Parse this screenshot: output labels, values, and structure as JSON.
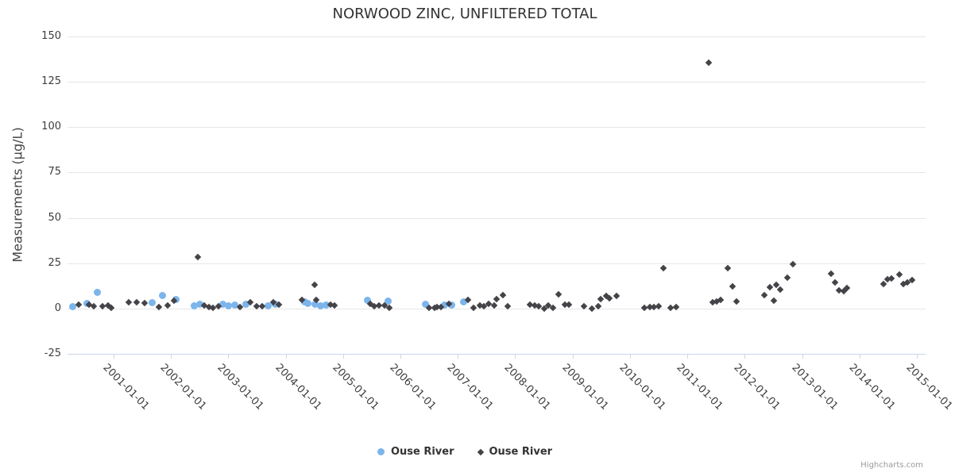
{
  "chart": {
    "title": "NORWOOD ZINC, UNFILTERED TOTAL",
    "credits": "Highcharts.com",
    "y_axis": {
      "title": "Measurements (µg/L)"
    },
    "legend": [
      {
        "label": "Ouse River",
        "marker": "circle",
        "color": "#7cb5ec"
      },
      {
        "label": "Ouse River",
        "marker": "diamond",
        "color": "#434348"
      }
    ]
  },
  "chart_data": {
    "type": "scatter",
    "title": "NORWOOD ZINC, UNFILTERED TOTAL",
    "xlabel": "",
    "ylabel": "Measurements (µg/L)",
    "xlim": [
      2000.2,
      2015.15
    ],
    "ylim": [
      -25,
      150
    ],
    "yticks": [
      -25,
      0,
      25,
      50,
      75,
      100,
      125,
      150
    ],
    "grid": "horizontal",
    "legend_position": "bottom-center",
    "xticks": [
      {
        "value": 2001,
        "label": "2001-01-01"
      },
      {
        "value": 2002,
        "label": "2002-01-01"
      },
      {
        "value": 2003,
        "label": "2003-01-01"
      },
      {
        "value": 2004,
        "label": "2004-01-01"
      },
      {
        "value": 2005,
        "label": "2005-01-01"
      },
      {
        "value": 2006,
        "label": "2006-01-01"
      },
      {
        "value": 2007,
        "label": "2007-01-01"
      },
      {
        "value": 2008,
        "label": "2008-01-01"
      },
      {
        "value": 2009,
        "label": "2009-01-01"
      },
      {
        "value": 2010,
        "label": "2010-01-01"
      },
      {
        "value": 2011,
        "label": "2011-01-01"
      },
      {
        "value": 2012,
        "label": "2012-01-01"
      },
      {
        "value": 2013,
        "label": "2013-01-01"
      },
      {
        "value": 2014,
        "label": "2014-01-01"
      },
      {
        "value": 2015,
        "label": "2015-01-01"
      }
    ],
    "series": [
      {
        "name": "Ouse River",
        "marker": "circle",
        "color": "#7cb5ec",
        "points": [
          [
            2000.29,
            0.9
          ],
          [
            2000.54,
            2.6
          ],
          [
            2000.72,
            8.8
          ],
          [
            2001.68,
            3.1
          ],
          [
            2001.86,
            7.0
          ],
          [
            2002.09,
            4.8
          ],
          [
            2002.41,
            1.3
          ],
          [
            2002.51,
            2.2
          ],
          [
            2002.91,
            2.2
          ],
          [
            2003.01,
            1.3
          ],
          [
            2003.12,
            1.8
          ],
          [
            2003.31,
            2.2
          ],
          [
            2003.7,
            1.3
          ],
          [
            2003.82,
            2.2
          ],
          [
            2004.33,
            3.5
          ],
          [
            2004.39,
            2.6
          ],
          [
            2004.51,
            2.2
          ],
          [
            2004.61,
            1.3
          ],
          [
            2004.71,
            1.8
          ],
          [
            2005.43,
            4.4
          ],
          [
            2005.79,
            3.9
          ],
          [
            2006.44,
            2.2
          ],
          [
            2006.77,
            1.8
          ],
          [
            2006.89,
            1.8
          ],
          [
            2007.1,
            3.5
          ]
        ]
      },
      {
        "name": "Ouse River",
        "marker": "diamond",
        "color": "#434348",
        "points": [
          [
            2000.39,
            2.2
          ],
          [
            2000.57,
            2.2
          ],
          [
            2000.65,
            1.3
          ],
          [
            2000.81,
            1.3
          ],
          [
            2000.9,
            1.8
          ],
          [
            2000.96,
            0.4
          ],
          [
            2001.26,
            3.5
          ],
          [
            2001.4,
            3.5
          ],
          [
            2001.54,
            3.1
          ],
          [
            2001.79,
            0.9
          ],
          [
            2001.95,
            1.8
          ],
          [
            2002.05,
            4.4
          ],
          [
            2002.47,
            28.5
          ],
          [
            2002.58,
            1.8
          ],
          [
            2002.66,
            0.9
          ],
          [
            2002.74,
            0.4
          ],
          [
            2002.83,
            1.3
          ],
          [
            2003.2,
            0.9
          ],
          [
            2003.39,
            3.5
          ],
          [
            2003.49,
            1.3
          ],
          [
            2003.59,
            1.3
          ],
          [
            2003.78,
            3.5
          ],
          [
            2003.88,
            2.2
          ],
          [
            2004.29,
            4.8
          ],
          [
            2004.5,
            13.1
          ],
          [
            2004.53,
            4.8
          ],
          [
            2004.78,
            2.2
          ],
          [
            2004.85,
            1.8
          ],
          [
            2005.47,
            2.6
          ],
          [
            2005.55,
            1.3
          ],
          [
            2005.63,
            1.8
          ],
          [
            2005.72,
            1.8
          ],
          [
            2005.81,
            0.4
          ],
          [
            2006.5,
            0.4
          ],
          [
            2006.59,
            0.4
          ],
          [
            2006.64,
            0.9
          ],
          [
            2006.71,
            0.9
          ],
          [
            2006.84,
            2.6
          ],
          [
            2007.18,
            4.8
          ],
          [
            2007.28,
            0.4
          ],
          [
            2007.38,
            1.8
          ],
          [
            2007.45,
            1.3
          ],
          [
            2007.53,
            2.6
          ],
          [
            2007.63,
            1.8
          ],
          [
            2007.68,
            5.3
          ],
          [
            2007.78,
            7.4
          ],
          [
            2007.87,
            1.3
          ],
          [
            2008.26,
            2.2
          ],
          [
            2008.34,
            1.8
          ],
          [
            2008.41,
            1.3
          ],
          [
            2008.5,
            0.0
          ],
          [
            2008.58,
            1.8
          ],
          [
            2008.66,
            0.4
          ],
          [
            2008.75,
            7.9
          ],
          [
            2008.87,
            2.2
          ],
          [
            2008.94,
            2.2
          ],
          [
            2009.2,
            1.3
          ],
          [
            2009.34,
            0.0
          ],
          [
            2009.44,
            1.3
          ],
          [
            2009.49,
            5.3
          ],
          [
            2009.58,
            7.0
          ],
          [
            2009.64,
            5.7
          ],
          [
            2009.76,
            7.0
          ],
          [
            2010.25,
            0.4
          ],
          [
            2010.34,
            0.9
          ],
          [
            2010.42,
            0.9
          ],
          [
            2010.5,
            1.3
          ],
          [
            2010.58,
            22.3
          ],
          [
            2010.71,
            0.4
          ],
          [
            2010.81,
            0.9
          ],
          [
            2011.37,
            135.7
          ],
          [
            2011.44,
            3.5
          ],
          [
            2011.51,
            3.9
          ],
          [
            2011.58,
            4.8
          ],
          [
            2011.71,
            22.3
          ],
          [
            2011.78,
            12.3
          ],
          [
            2011.85,
            3.9
          ],
          [
            2012.34,
            7.4
          ],
          [
            2012.44,
            11.8
          ],
          [
            2012.51,
            4.4
          ],
          [
            2012.55,
            13.1
          ],
          [
            2012.61,
            10.5
          ],
          [
            2012.74,
            17.1
          ],
          [
            2012.84,
            24.5
          ],
          [
            2013.5,
            19.3
          ],
          [
            2013.57,
            14.4
          ],
          [
            2013.64,
            10.1
          ],
          [
            2013.72,
            9.6
          ],
          [
            2013.78,
            11.4
          ],
          [
            2014.41,
            13.6
          ],
          [
            2014.48,
            16.2
          ],
          [
            2014.55,
            16.6
          ],
          [
            2014.69,
            18.8
          ],
          [
            2014.76,
            13.6
          ],
          [
            2014.83,
            14.4
          ],
          [
            2014.91,
            15.8
          ]
        ]
      }
    ]
  }
}
